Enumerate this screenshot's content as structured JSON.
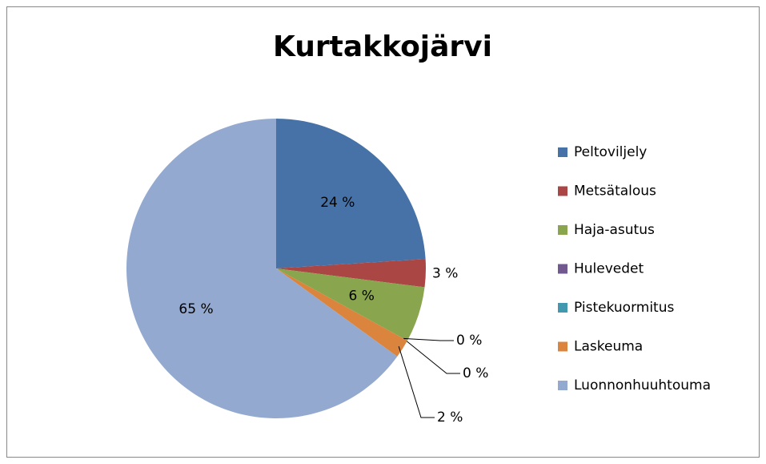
{
  "chart_data": {
    "type": "pie",
    "title": "Kurtakkojärvi",
    "categories": [
      "Peltoviljely",
      "Metsätalous",
      "Haja-asutus",
      "Hulevedet",
      "Pistekuormitus",
      "Laskeuma",
      "Luonnonhuuhtouma"
    ],
    "values": [
      24,
      3,
      6,
      0,
      0,
      2,
      65
    ],
    "value_labels": [
      "24 %",
      "3 %",
      "6 %",
      "0 %",
      "0 %",
      "2 %",
      "65 %"
    ],
    "colors": [
      "#4672a8",
      "#aa4643",
      "#89a54e",
      "#71588f",
      "#4198af",
      "#db843d",
      "#93a9cf"
    ],
    "legend": "right"
  }
}
